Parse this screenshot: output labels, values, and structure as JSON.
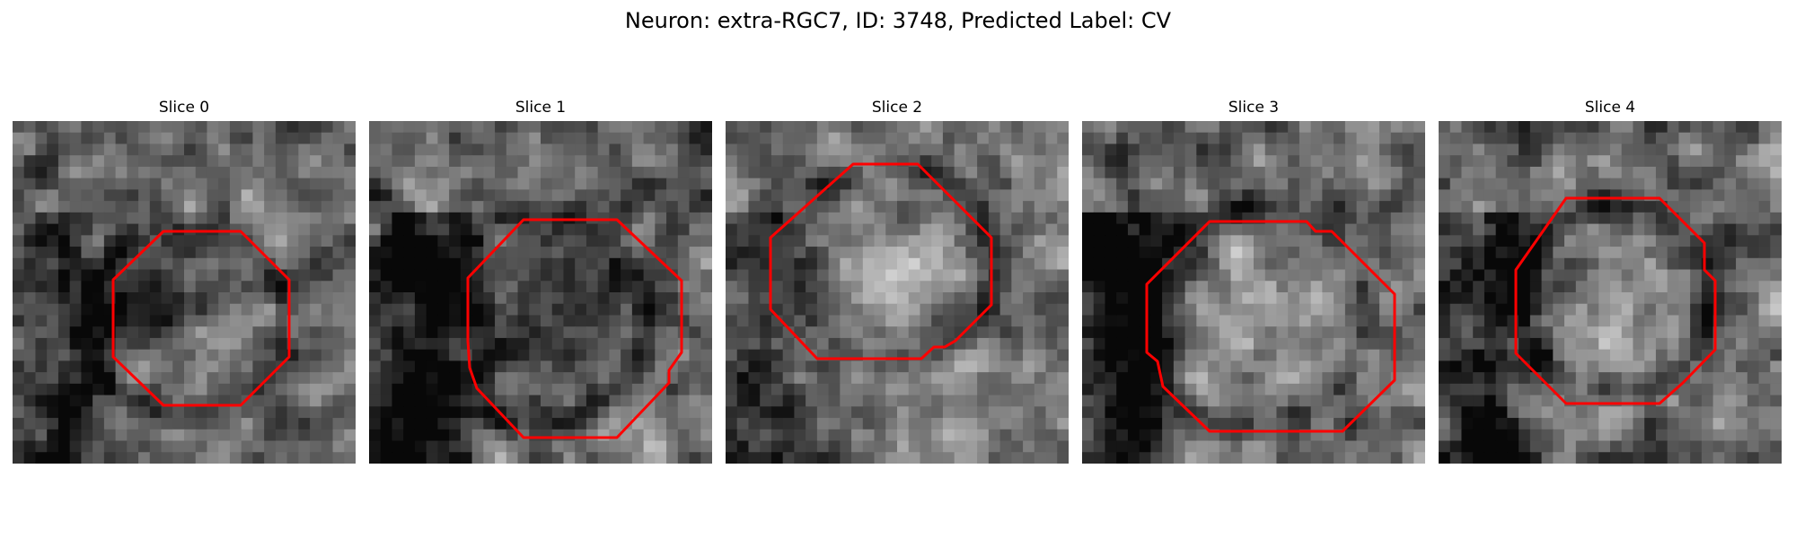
{
  "figure": {
    "title": "Neuron: extra-RGC7, ID: 3748, Predicted Label: CV",
    "outline_color": "#ff0000",
    "colormap": "grayscale",
    "slices": [
      {
        "label": "Slice 0",
        "seed": 11,
        "center": [
          0.41,
          0.59
        ],
        "dark_blob": [
          0.39,
          0.52,
          0.22
        ],
        "dark_band": [
          0.15,
          0.2,
          0.45
        ],
        "ring": [
          0.5,
          0.58,
          0.45
        ],
        "light_blob": null
      },
      {
        "label": "Slice 1",
        "seed": 23,
        "center": [
          0.4,
          0.6
        ],
        "dark_blob": [
          0.48,
          0.57,
          0.28
        ],
        "dark_band": [
          0.14,
          0.22,
          0.5
        ],
        "ring": [
          0.5,
          0.58,
          0.5
        ],
        "light_blob": null
      },
      {
        "label": "Slice 2",
        "seed": 37,
        "center": [
          0.45,
          0.55
        ],
        "dark_blob": null,
        "dark_band": [
          0.1,
          0.25,
          0.35
        ],
        "ring": [
          0.49,
          0.42,
          0.46
        ],
        "light_blob": [
          0.45,
          0.48,
          0.22
        ]
      },
      {
        "label": "Slice 3",
        "seed": 51,
        "center": [
          0.4,
          0.58
        ],
        "dark_blob": null,
        "dark_band": [
          0.12,
          0.23,
          0.55
        ],
        "ring": [
          0.5,
          0.57,
          0.52
        ],
        "light_blob": [
          0.55,
          0.58,
          0.28
        ]
      },
      {
        "label": "Slice 4",
        "seed": 67,
        "center": [
          0.42,
          0.6
        ],
        "dark_blob": null,
        "dark_band": [
          0.15,
          0.22,
          0.48
        ],
        "ring": [
          0.52,
          0.52,
          0.44
        ],
        "light_blob": [
          0.55,
          0.55,
          0.24
        ]
      }
    ]
  }
}
